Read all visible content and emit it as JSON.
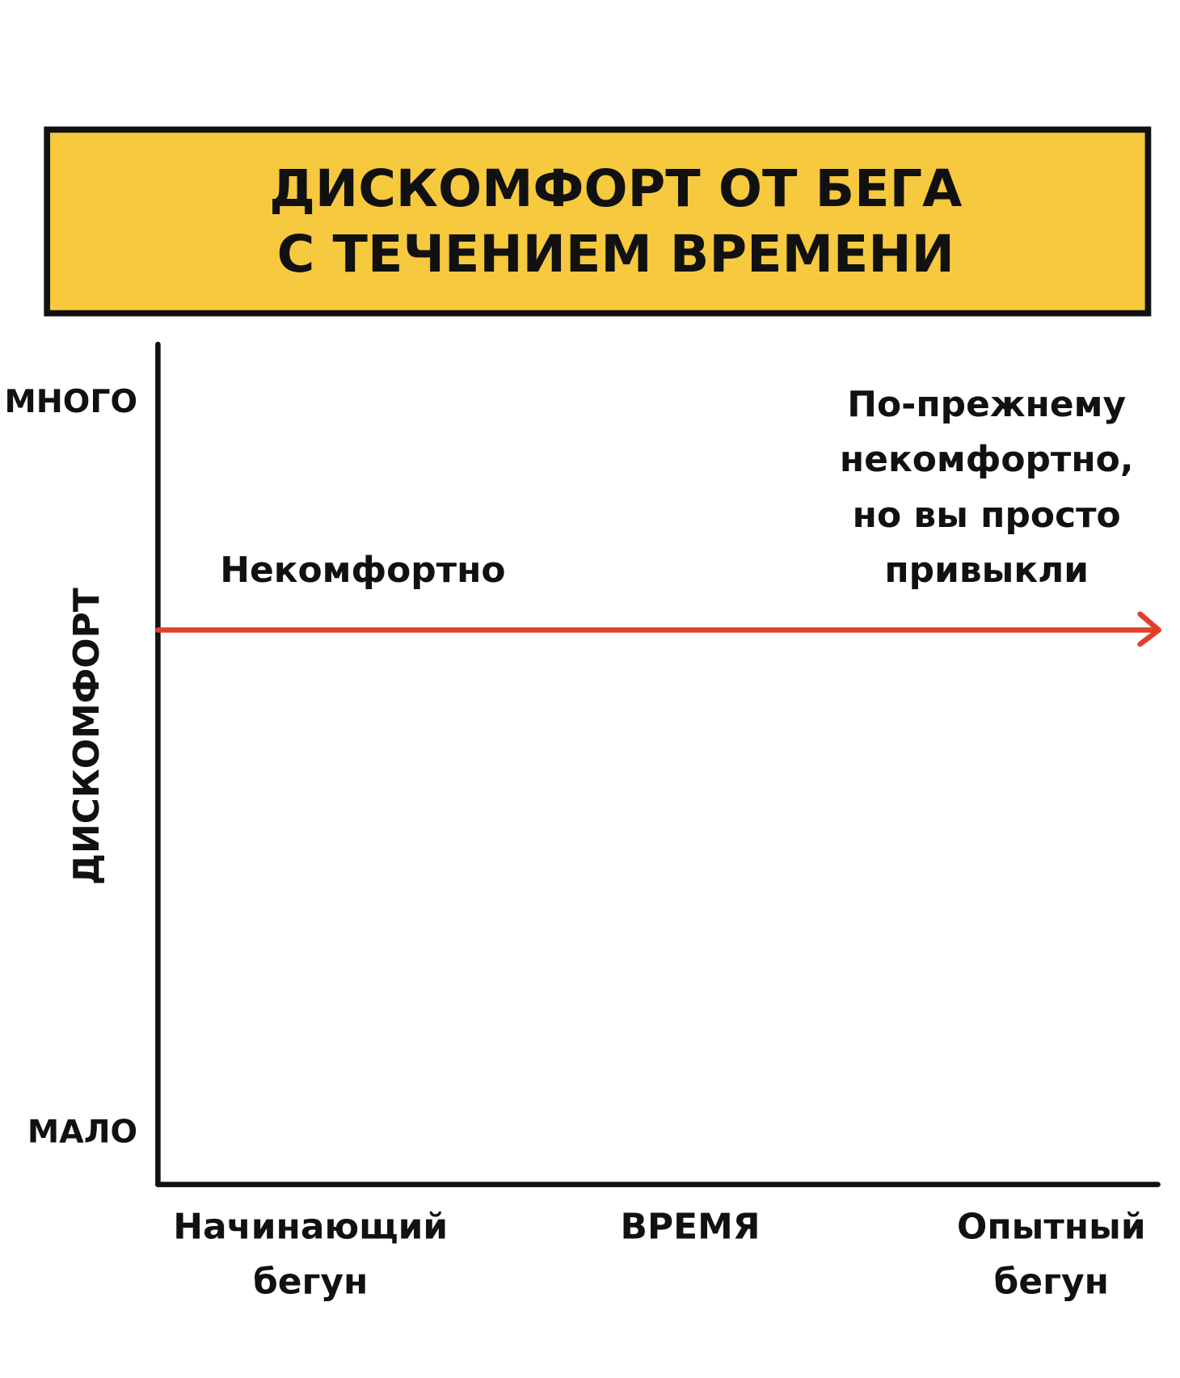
{
  "title": {
    "lines": [
      "ДИСКОМФОРТ ОТ БЕГА",
      "С ТЕЧЕНИЕМ ВРЕМЕНИ"
    ]
  },
  "y_axis": {
    "label": "ДИСКОМФОРТ",
    "high": "МНОГО",
    "low": "МАЛО"
  },
  "x_axis": {
    "label": "ВРЕМЯ",
    "start": [
      "Начинающий",
      "бегун"
    ],
    "end": [
      "Опытный",
      "бегун"
    ]
  },
  "annotations": {
    "line_start": "Некомфортно",
    "line_end": [
      "По-прежнему",
      "некомфортно,",
      "но вы просто",
      "привыкли"
    ]
  }
}
